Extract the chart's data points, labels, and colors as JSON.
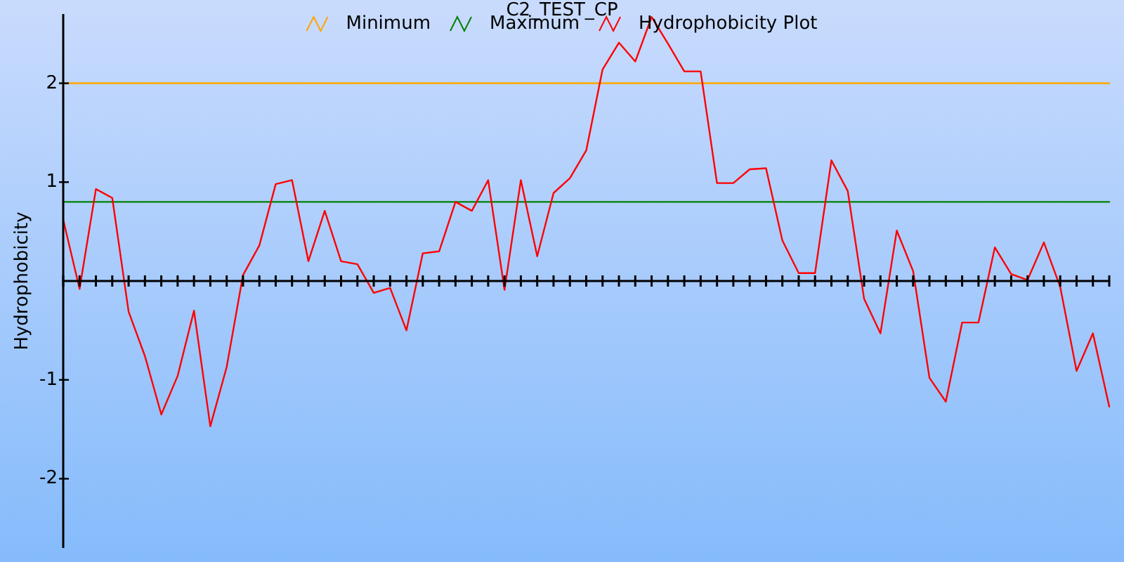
{
  "chart_data": {
    "type": "line",
    "title": "C2_TEST_CP",
    "ylabel": "Hydrophobicity",
    "categories": [
      null,
      null,
      null,
      null,
      null,
      null,
      null,
      null,
      null,
      null,
      null,
      null,
      null,
      null,
      null,
      null,
      null,
      null,
      null,
      null,
      null,
      null,
      null,
      null,
      null,
      null,
      null,
      null,
      null,
      null,
      null,
      null,
      null,
      null,
      null,
      null,
      null,
      null,
      null,
      null,
      null,
      null,
      null,
      null,
      null,
      null,
      null,
      null,
      null,
      null,
      null,
      null,
      null,
      null,
      null,
      null,
      null,
      null,
      null,
      null,
      null,
      null,
      null,
      null,
      null
    ],
    "series": [
      {
        "name": "Minimum",
        "color": "#ffa500",
        "values": [
          2,
          2,
          2,
          2,
          2,
          2,
          2,
          2,
          2,
          2,
          2,
          2,
          2,
          2,
          2,
          2,
          2,
          2,
          2,
          2,
          2,
          2,
          2,
          2,
          2,
          2,
          2,
          2,
          2,
          2,
          2,
          2,
          2,
          2,
          2,
          2,
          2,
          2,
          2,
          2,
          2,
          2,
          2,
          2,
          2,
          2,
          2,
          2,
          2,
          2,
          2,
          2,
          2,
          2,
          2,
          2,
          2,
          2,
          2,
          2,
          2,
          2,
          2,
          2,
          2
        ]
      },
      {
        "name": "Maximum",
        "color": "#008000",
        "values": [
          0.8,
          0.8,
          0.8,
          0.8,
          0.8,
          0.8,
          0.8,
          0.8,
          0.8,
          0.8,
          0.8,
          0.8,
          0.8,
          0.8,
          0.8,
          0.8,
          0.8,
          0.8,
          0.8,
          0.8,
          0.8,
          0.8,
          0.8,
          0.8,
          0.8,
          0.8,
          0.8,
          0.8,
          0.8,
          0.8,
          0.8,
          0.8,
          0.8,
          0.8,
          0.8,
          0.8,
          0.8,
          0.8,
          0.8,
          0.8,
          0.8,
          0.8,
          0.8,
          0.8,
          0.8,
          0.8,
          0.8,
          0.8,
          0.8,
          0.8,
          0.8,
          0.8,
          0.8,
          0.8,
          0.8,
          0.8,
          0.8,
          0.8,
          0.8,
          0.8,
          0.8,
          0.8,
          0.8,
          0.8,
          0.8
        ]
      },
      {
        "name": "Hydrophobicity Plot",
        "color": "#ff0000",
        "values": [
          0.62,
          -0.08,
          0.93,
          0.84,
          -0.31,
          -0.76,
          -1.35,
          -0.96,
          -0.3,
          -1.47,
          -0.87,
          0.06,
          0.36,
          0.98,
          1.02,
          0.2,
          0.71,
          0.2,
          0.17,
          -0.12,
          -0.07,
          -0.5,
          0.28,
          0.3,
          0.8,
          0.71,
          1.02,
          -0.09,
          1.02,
          0.25,
          0.89,
          1.04,
          1.32,
          2.14,
          2.41,
          2.22,
          2.67,
          2.4,
          2.12,
          2.12,
          0.99,
          0.99,
          1.13,
          1.14,
          0.41,
          0.08,
          0.08,
          1.22,
          0.91,
          -0.18,
          -0.53,
          0.51,
          0.1,
          -0.98,
          -1.22,
          -0.42,
          -0.42,
          0.34,
          0.07,
          0.01,
          0.39,
          -0.06,
          -0.91,
          -0.53,
          -1.27
        ]
      }
    ],
    "ylim": [
      -2.7,
      2.7
    ],
    "yticks": [
      -2,
      -1,
      1,
      2
    ],
    "tick_labels": "y",
    "legend": "top",
    "grid": false,
    "marker": "none",
    "line_style": "solid"
  }
}
